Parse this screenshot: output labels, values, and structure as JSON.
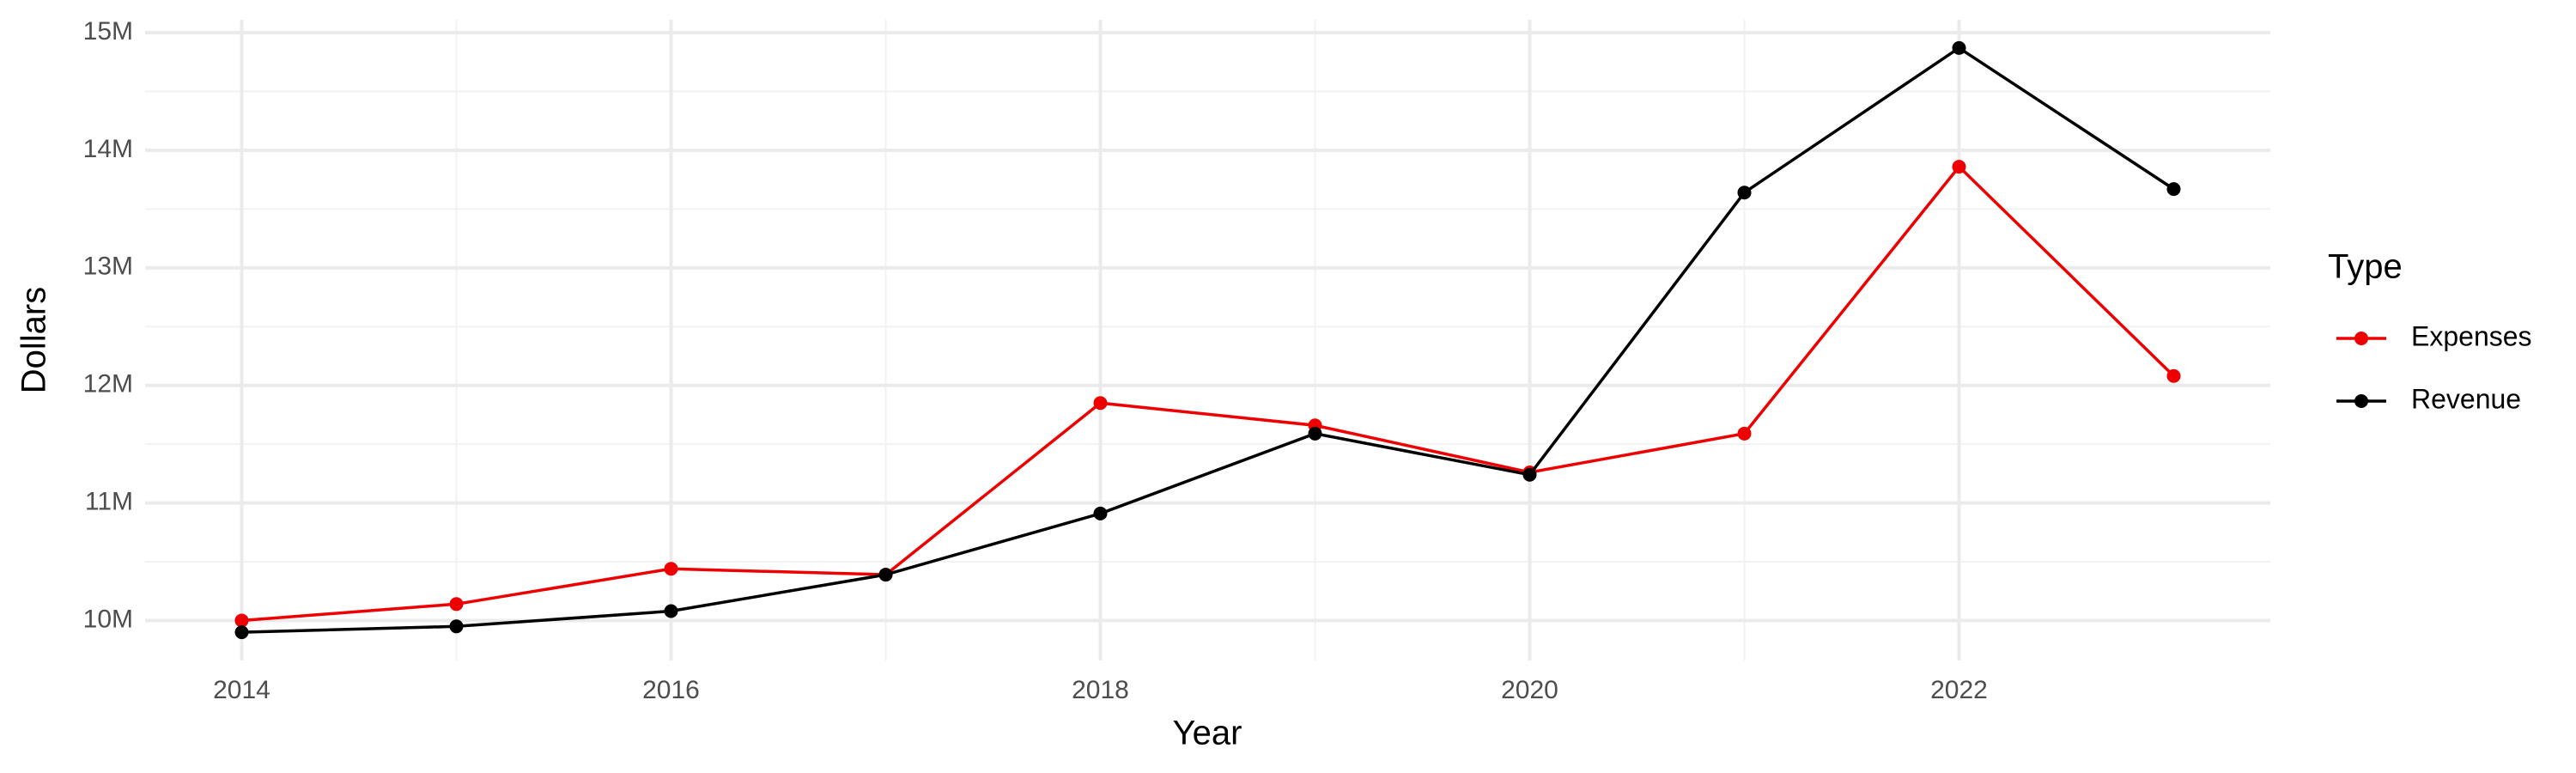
{
  "chart_data": {
    "type": "line",
    "x": [
      2014,
      2015,
      2016,
      2017,
      2018,
      2019,
      2020,
      2021,
      2022,
      2023
    ],
    "series": [
      {
        "name": "Expenses",
        "color": "#ee0000",
        "values": [
          10000000,
          10140000,
          10440000,
          10390000,
          11850000,
          11660000,
          11260000,
          11590000,
          13860000,
          12080000
        ]
      },
      {
        "name": "Revenue",
        "color": "#000000",
        "values": [
          9900000,
          9950000,
          10080000,
          10390000,
          10910000,
          11590000,
          11240000,
          13640000,
          14870000,
          13670000
        ]
      }
    ],
    "x_label": "Year",
    "y_label": "Dollars",
    "legend_title": "Type",
    "xlim": [
      2013.55,
      2023.45
    ],
    "xticks": [
      2014,
      2016,
      2018,
      2020,
      2022
    ],
    "ylim": [
      9660000,
      15110000
    ],
    "yticks": [
      {
        "value": 10000000,
        "label": "10M"
      },
      {
        "value": 11000000,
        "label": "11M"
      },
      {
        "value": 12000000,
        "label": "12M"
      },
      {
        "value": 13000000,
        "label": "13M"
      },
      {
        "value": 14000000,
        "label": "14M"
      },
      {
        "value": 15000000,
        "label": "15M"
      }
    ],
    "grid": true,
    "legend": "right"
  }
}
